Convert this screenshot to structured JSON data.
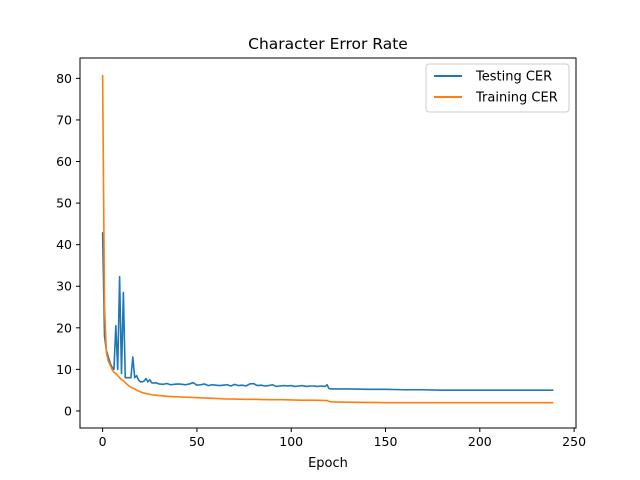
{
  "chart_data": {
    "type": "line",
    "title": "Character Error Rate",
    "xlabel": "Epoch",
    "ylabel": "",
    "xlim": [
      -12,
      251
    ],
    "ylim": [
      -4.1,
      84.9
    ],
    "xticks": [
      0,
      50,
      100,
      150,
      200,
      250
    ],
    "yticks": [
      0,
      10,
      20,
      30,
      40,
      50,
      60,
      70,
      80
    ],
    "grid": false,
    "legend_position": "top-right",
    "series": [
      {
        "name": "Testing CER",
        "color": "#1f77b4",
        "x": [
          0,
          1,
          2,
          3,
          4,
          5,
          6,
          7,
          8,
          9,
          10,
          11,
          12,
          13,
          14,
          15,
          16,
          17,
          18,
          19,
          20,
          21,
          22,
          23,
          24,
          25,
          26,
          27,
          28,
          30,
          32,
          34,
          36,
          38,
          40,
          42,
          44,
          46,
          48,
          50,
          52,
          54,
          56,
          58,
          60,
          62,
          64,
          66,
          68,
          70,
          72,
          74,
          76,
          78,
          80,
          82,
          84,
          86,
          88,
          90,
          92,
          94,
          96,
          98,
          100,
          102,
          104,
          106,
          108,
          110,
          112,
          114,
          116,
          118,
          119,
          120,
          121,
          125,
          130,
          140,
          150,
          160,
          170,
          180,
          190,
          200,
          210,
          220,
          230,
          239
        ],
        "values": [
          43,
          18,
          14.5,
          13,
          11.5,
          10.5,
          10,
          20.5,
          10,
          32.3,
          9,
          28.5,
          8,
          8,
          8,
          8,
          13,
          8,
          8.5,
          7.5,
          7,
          7,
          7.2,
          7.8,
          7,
          7.5,
          6.8,
          6.7,
          6.8,
          6.5,
          6.4,
          6.6,
          6.3,
          6.4,
          6.5,
          6.4,
          6.3,
          6.5,
          6.8,
          6.2,
          6.3,
          6.5,
          6.1,
          6.3,
          6.2,
          6.1,
          6.2,
          6.3,
          6.0,
          6.4,
          6.1,
          6.2,
          6.0,
          6.5,
          6.6,
          6.1,
          6.2,
          6.0,
          6.1,
          6.3,
          5.9,
          6.0,
          6.1,
          6.0,
          6.1,
          5.9,
          6.0,
          6.1,
          5.9,
          6.0,
          6.0,
          5.9,
          6.0,
          5.9,
          6.3,
          5.4,
          5.3,
          5.3,
          5.3,
          5.2,
          5.2,
          5.1,
          5.1,
          5.0,
          5.0,
          5.0,
          5.0,
          5.0,
          5.0,
          5.0
        ]
      },
      {
        "name": "Training CER",
        "color": "#ff7f0e",
        "x": [
          0,
          1,
          2,
          3,
          4,
          5,
          6,
          7,
          8,
          9,
          10,
          11,
          12,
          13,
          14,
          15,
          16,
          17,
          18,
          19,
          20,
          22,
          24,
          26,
          28,
          30,
          35,
          40,
          45,
          50,
          55,
          60,
          65,
          70,
          75,
          80,
          85,
          90,
          95,
          100,
          105,
          110,
          115,
          119,
          120,
          121,
          125,
          130,
          140,
          150,
          160,
          170,
          180,
          190,
          200,
          210,
          220,
          230,
          239
        ],
        "values": [
          80.8,
          25,
          14,
          12,
          11,
          10,
          9.3,
          9,
          8.5,
          8,
          7.5,
          7.3,
          6.8,
          6.4,
          6,
          5.7,
          5.5,
          5.3,
          5,
          4.8,
          4.6,
          4.3,
          4.1,
          3.9,
          3.8,
          3.7,
          3.5,
          3.4,
          3.3,
          3.2,
          3.1,
          3.0,
          2.9,
          2.85,
          2.8,
          2.8,
          2.75,
          2.7,
          2.7,
          2.65,
          2.6,
          2.6,
          2.55,
          2.5,
          2.3,
          2.2,
          2.15,
          2.1,
          2.05,
          2.0,
          2.0,
          2.0,
          2.0,
          2.0,
          2.0,
          2.0,
          2.0,
          2.0,
          2.0
        ]
      }
    ]
  }
}
